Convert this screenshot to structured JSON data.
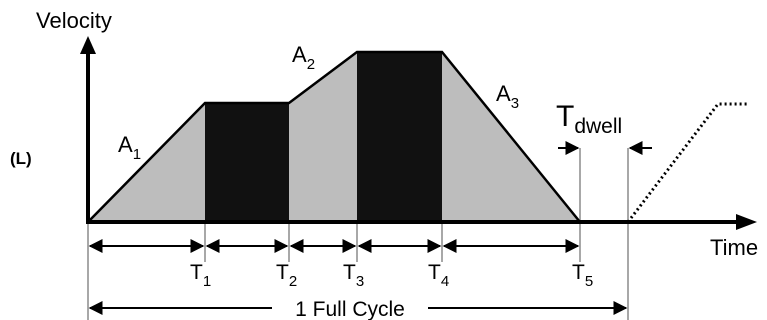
{
  "diagram": {
    "side_label": "(L)",
    "axes": {
      "y_label": "Velocity",
      "x_label": "Time"
    },
    "areas": [
      {
        "letter": "A",
        "sub": "1"
      },
      {
        "letter": "A",
        "sub": "2"
      },
      {
        "letter": "A",
        "sub": "3"
      }
    ],
    "dwell": {
      "letter": "T",
      "sub": "dwell"
    },
    "time_marks": [
      {
        "letter": "T",
        "sub": "1"
      },
      {
        "letter": "T",
        "sub": "2"
      },
      {
        "letter": "T",
        "sub": "3"
      },
      {
        "letter": "T",
        "sub": "4"
      },
      {
        "letter": "T",
        "sub": "5"
      }
    ],
    "full_cycle_label": "1 Full Cycle",
    "colors": {
      "fill_gray": "#bdbdbd",
      "fill_black": "#111111",
      "guide_gray": "#a8a8a8",
      "ink": "#000000"
    }
  }
}
